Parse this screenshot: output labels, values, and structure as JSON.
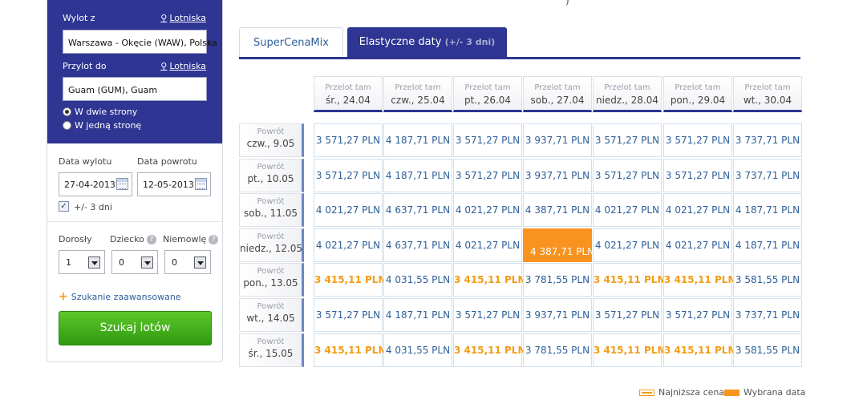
{
  "search_panel": {
    "from_label": "Wylot z",
    "from_airports_link": "Lotniska",
    "from_value": "Warszawa - Okęcie (WAW), Polska",
    "to_label": "Przylot do",
    "to_airports_link": "Lotniska",
    "to_value": "Guam (GUM), Guam",
    "trip_options": [
      "W dwie strony",
      "W jedną stronę"
    ],
    "selected_trip": "W dwie strony",
    "departure_label": "Data wylotu",
    "departure_value": "27-04-2013",
    "return_label": "Data powrotu",
    "return_value": "12-05-2013",
    "flex_checkbox_label": "+/- 3 dni",
    "flex_checked": true,
    "adult_label": "Dorosły",
    "child_label": "Dziecko",
    "infant_label": "Niemowlę",
    "help_glyph": "?",
    "adults": "1",
    "children": "0",
    "infants": "0",
    "advanced_link": "Szukanie zaawansowane",
    "search_button": "Szukaj lotów",
    "accent_color": "#2e3592",
    "button_color": "#3fae1a"
  },
  "top_fragment": ")",
  "tabs": [
    {
      "label": "SuperCenaMix",
      "sub": "",
      "active": false
    },
    {
      "label": "Elastyczne daty",
      "sub": "(+/- 3 dni)",
      "active": true
    }
  ],
  "grid": {
    "outbound_prefix": "Przelot tam",
    "return_prefix": "Powrót",
    "columns": [
      "śr., 24.04",
      "czw., 25.04",
      "pt., 26.04",
      "sob., 27.04",
      "niedz., 28.04",
      "pon., 29.04",
      "wt., 30.04"
    ],
    "rows": [
      {
        "date": "czw., 9.05",
        "prices": [
          "3 571,27 PLN",
          "4 187,71 PLN",
          "3 571,27 PLN",
          "3 937,71 PLN",
          "3 571,27 PLN",
          "3 571,27 PLN",
          "3 737,71 PLN"
        ]
      },
      {
        "date": "pt., 10.05",
        "prices": [
          "3 571,27 PLN",
          "4 187,71 PLN",
          "3 571,27 PLN",
          "3 937,71 PLN",
          "3 571,27 PLN",
          "3 571,27 PLN",
          "3 737,71 PLN"
        ]
      },
      {
        "date": "sob., 11.05",
        "prices": [
          "4 021,27 PLN",
          "4 637,71 PLN",
          "4 021,27 PLN",
          "4 387,71 PLN",
          "4 021,27 PLN",
          "4 021,27 PLN",
          "4 187,71 PLN"
        ]
      },
      {
        "date": "niedz., 12.05",
        "prices": [
          "4 021,27 PLN",
          "4 637,71 PLN",
          "4 021,27 PLN",
          "4 387,71 PLN",
          "4 021,27 PLN",
          "4 021,27 PLN",
          "4 187,71 PLN"
        ]
      },
      {
        "date": "pon., 13.05",
        "prices": [
          "3 415,11 PLN",
          "4 031,55 PLN",
          "3 415,11 PLN",
          "3 781,55 PLN",
          "3 415,11 PLN",
          "3 415,11 PLN",
          "3 581,55 PLN"
        ]
      },
      {
        "date": "wt., 14.05",
        "prices": [
          "3 571,27 PLN",
          "4 187,71 PLN",
          "3 571,27 PLN",
          "3 937,71 PLN",
          "3 571,27 PLN",
          "3 571,27 PLN",
          "3 737,71 PLN"
        ]
      },
      {
        "date": "śr., 15.05",
        "prices": [
          "3 415,11 PLN",
          "4 031,55 PLN",
          "3 415,11 PLN",
          "3 781,55 PLN",
          "3 415,11 PLN",
          "3 415,11 PLN",
          "3 581,55 PLN"
        ]
      }
    ],
    "lowest_price": "3 415,11 PLN",
    "selected_cell": {
      "row": 3,
      "col": 3
    },
    "lowest_color": "#f29c16",
    "selected_color": "#f7931e",
    "price_color": "#2d5f99"
  },
  "legend": {
    "lowest_label": "Najniższa cena",
    "selected_label": "Wybrana data"
  }
}
